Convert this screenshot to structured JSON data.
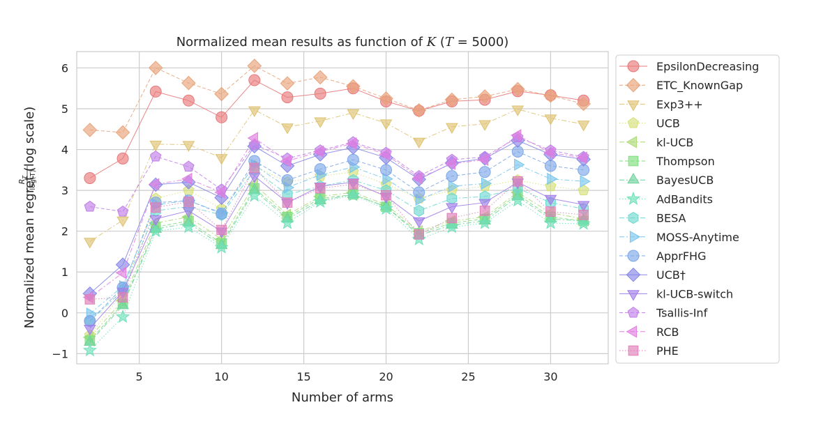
{
  "chart_data": {
    "type": "line",
    "title": "Normalized mean results as function of K (T = 5000)",
    "title_parts": {
      "prefix": "Normalized mean results as function of ",
      "k": "K",
      "paren": " (",
      "t": "T",
      "eq": " = 5000)"
    },
    "xlabel": "Number of arms",
    "ylabel": "Normalized mean regret  (log scale)",
    "ylabel_fraction": {
      "numerator": "R",
      "numerator_sub": "T",
      "denominator": "log(T)"
    },
    "xlim": [
      1.2,
      33.5
    ],
    "ylim": [
      -1.25,
      6.4
    ],
    "x_ticks": [
      5,
      10,
      15,
      20,
      25,
      30
    ],
    "y_ticks": [
      -1,
      0,
      1,
      2,
      3,
      4,
      5,
      6
    ],
    "x_tick_labels": [
      "5",
      "10",
      "15",
      "20",
      "25",
      "30"
    ],
    "y_tick_labels": [
      "−1",
      "0",
      "1",
      "2",
      "3",
      "4",
      "5",
      "6"
    ],
    "grid": true,
    "legend_position": "outside-right",
    "x": [
      2,
      4,
      6,
      8,
      10,
      12,
      14,
      16,
      18,
      20,
      22,
      24,
      26,
      28,
      30,
      32
    ],
    "series": [
      {
        "name": "EpsilonDecreasing",
        "color": "#e8797a",
        "marker": "circle",
        "dash": "solid",
        "values": [
          3.3,
          3.78,
          5.42,
          5.2,
          4.79,
          5.7,
          5.28,
          5.37,
          5.5,
          5.18,
          4.95,
          5.18,
          5.22,
          5.43,
          5.33,
          5.2
        ]
      },
      {
        "name": "ETC_KnownGap",
        "color": "#e8a37a",
        "marker": "diamond",
        "dash": "dashed",
        "values": [
          4.48,
          4.42,
          6.0,
          5.63,
          5.36,
          6.05,
          5.62,
          5.77,
          5.55,
          5.25,
          4.96,
          5.22,
          5.3,
          5.48,
          5.32,
          5.12
        ]
      },
      {
        "name": "Exp3++",
        "color": "#dec270",
        "marker": "triangle-down",
        "dash": "dashdot",
        "values": [
          1.75,
          2.27,
          4.13,
          4.12,
          3.8,
          4.97,
          4.55,
          4.7,
          4.9,
          4.65,
          4.2,
          4.56,
          4.63,
          4.99,
          4.77,
          4.62
        ]
      },
      {
        "name": "UCB",
        "color": "#d6e07a",
        "marker": "pentagon",
        "dash": "dotted",
        "values": [
          -0.55,
          0.5,
          2.8,
          3.0,
          2.55,
          3.6,
          3.2,
          3.35,
          3.45,
          3.15,
          2.8,
          3.0,
          3.1,
          3.25,
          3.1,
          3.0
        ]
      },
      {
        "name": "kl-UCB",
        "color": "#abd975",
        "marker": "triangle-left",
        "dash": "dashdot",
        "values": [
          -0.6,
          0.3,
          2.2,
          2.35,
          1.8,
          3.15,
          2.4,
          2.85,
          2.95,
          2.65,
          2.0,
          2.25,
          2.35,
          2.95,
          2.45,
          2.3
        ]
      },
      {
        "name": "Thompson",
        "color": "#7fde7f",
        "marker": "square",
        "dash": "dashed",
        "values": [
          -0.68,
          0.22,
          2.1,
          2.25,
          1.7,
          3.05,
          2.35,
          2.8,
          2.9,
          2.6,
          1.95,
          2.2,
          2.3,
          2.9,
          2.35,
          2.25
        ]
      },
      {
        "name": "BayesUCB",
        "color": "#6ed29b",
        "marker": "triangle-up",
        "dash": "dashdot",
        "values": [
          -0.72,
          0.18,
          2.05,
          2.2,
          1.65,
          3.0,
          2.3,
          2.75,
          2.9,
          2.6,
          1.9,
          2.15,
          2.25,
          2.85,
          2.3,
          2.25
        ]
      },
      {
        "name": "AdBandits",
        "color": "#6ee0b8",
        "marker": "star",
        "dash": "dotted",
        "values": [
          -0.92,
          -0.1,
          2.0,
          2.1,
          1.6,
          2.87,
          2.2,
          2.72,
          2.88,
          2.55,
          1.8,
          2.1,
          2.2,
          2.75,
          2.2,
          2.18
        ]
      },
      {
        "name": "BESA",
        "color": "#6fd8d0",
        "marker": "hexagon",
        "dash": "dashdot",
        "values": [
          -0.2,
          0.55,
          2.5,
          2.6,
          2.4,
          3.5,
          2.9,
          3.1,
          3.25,
          3.0,
          2.5,
          2.8,
          2.85,
          3.05,
          2.7,
          2.55
        ]
      },
      {
        "name": "MOSS-Anytime",
        "color": "#79c6ec",
        "marker": "triangle-right",
        "dash": "dashdot",
        "values": [
          -0.02,
          0.65,
          2.65,
          2.75,
          2.45,
          3.62,
          3.07,
          3.38,
          3.57,
          3.28,
          2.77,
          3.1,
          3.17,
          3.63,
          3.28,
          3.22
        ]
      },
      {
        "name": "ApprFHG",
        "color": "#7ea8e8",
        "marker": "circle",
        "dash": "dashed",
        "values": [
          -0.2,
          0.62,
          2.7,
          2.75,
          2.43,
          3.72,
          3.25,
          3.52,
          3.75,
          3.5,
          2.95,
          3.35,
          3.45,
          3.95,
          3.6,
          3.5
        ]
      },
      {
        "name": "UCB†",
        "color": "#8787e8",
        "marker": "diamond",
        "dash": "solid",
        "values": [
          0.47,
          1.18,
          3.14,
          3.2,
          2.82,
          4.08,
          3.6,
          3.88,
          4.05,
          3.8,
          3.27,
          3.67,
          3.78,
          4.22,
          3.88,
          3.76
        ]
      },
      {
        "name": "kl-UCB-switch",
        "color": "#a07ee8",
        "marker": "triangle-down",
        "dash": "solid",
        "values": [
          -0.38,
          0.52,
          2.3,
          2.5,
          2.0,
          3.35,
          2.7,
          3.1,
          3.2,
          2.85,
          2.25,
          2.6,
          2.7,
          3.2,
          2.8,
          2.65
        ]
      },
      {
        "name": "Tsallis-Inf",
        "color": "#c07ee8",
        "marker": "pentagon",
        "dash": "dashed",
        "values": [
          2.6,
          2.48,
          3.83,
          3.58,
          3.02,
          4.12,
          3.78,
          3.98,
          4.18,
          3.92,
          3.35,
          3.75,
          3.82,
          4.3,
          3.98,
          3.82
        ]
      },
      {
        "name": "RCB",
        "color": "#e07ee0",
        "marker": "triangle-left",
        "dash": "dashdot",
        "values": [
          0.38,
          0.98,
          3.15,
          3.28,
          2.95,
          4.28,
          3.72,
          3.95,
          4.15,
          3.88,
          3.3,
          3.65,
          3.75,
          4.35,
          3.92,
          3.8
        ]
      },
      {
        "name": "PHE",
        "color": "#e07eb8",
        "marker": "square",
        "dash": "dotted",
        "values": [
          0.33,
          0.38,
          2.58,
          2.72,
          2.03,
          3.55,
          2.7,
          3.05,
          3.15,
          2.88,
          1.92,
          2.32,
          2.5,
          3.22,
          2.48,
          2.4
        ]
      }
    ]
  }
}
